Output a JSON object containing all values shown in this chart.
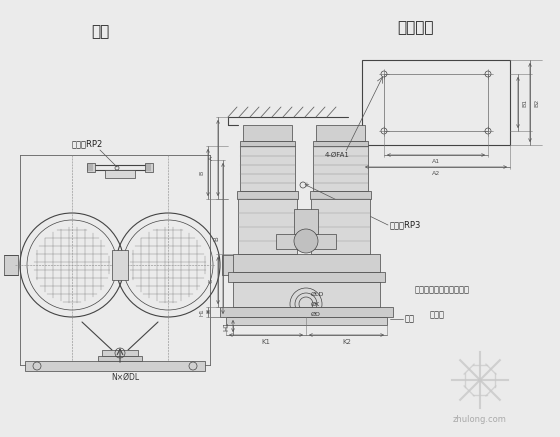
{
  "bg_color": "#ebebeb",
  "line_color": "#444444",
  "title_dibanche": "底板尺寸",
  "label_xingao": "型号",
  "label_ceya": "测压口RP2",
  "label_paiq": "排气口RP3",
  "label_diban": "底板",
  "label_zhenpad": "隔振垫（隔振器）规格：",
  "label_zhenpd2": "隔振垫",
  "dim_A1": "A1",
  "dim_A2": "A2",
  "dim_B1": "B1",
  "dim_B2": "B2",
  "dim_N_holes": "N×ØDL",
  "dim_4holes": "4-ØFA1",
  "dim_K1": "K1",
  "dim_K2": "K2",
  "dim_C": "C",
  "dim_H": "H1",
  "dim_A": "A",
  "dim_B": "B",
  "dim_phiLD": "ØLD",
  "dim_phiK": "ØK",
  "dim_phiD": "ØD",
  "watermark": "zhulong.com"
}
